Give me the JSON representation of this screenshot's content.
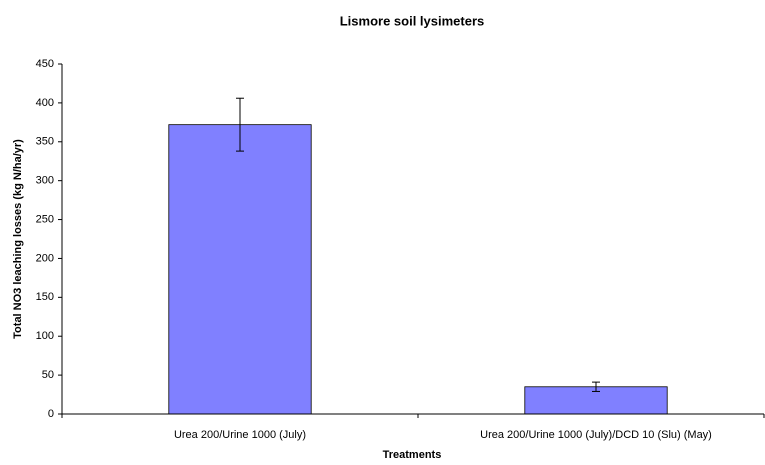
{
  "chart_data": {
    "type": "bar",
    "title": "Lismore soil lysimeters",
    "x_label": "Treatments",
    "y_label": "Total NO3 leaching losses (kg N/ha/yr)",
    "categories": [
      "Urea 200/Urine 1000 (July)",
      "Urea 200/Urine 1000 (July)/DCD 10 (Slu) (May)"
    ],
    "values": [
      372,
      35
    ],
    "errors": [
      34,
      6
    ],
    "color": "#8080ff",
    "ylim": [
      0,
      450
    ],
    "yticks": [
      0,
      50,
      100,
      150,
      200,
      250,
      300,
      350,
      400,
      450
    ],
    "grid": false
  }
}
